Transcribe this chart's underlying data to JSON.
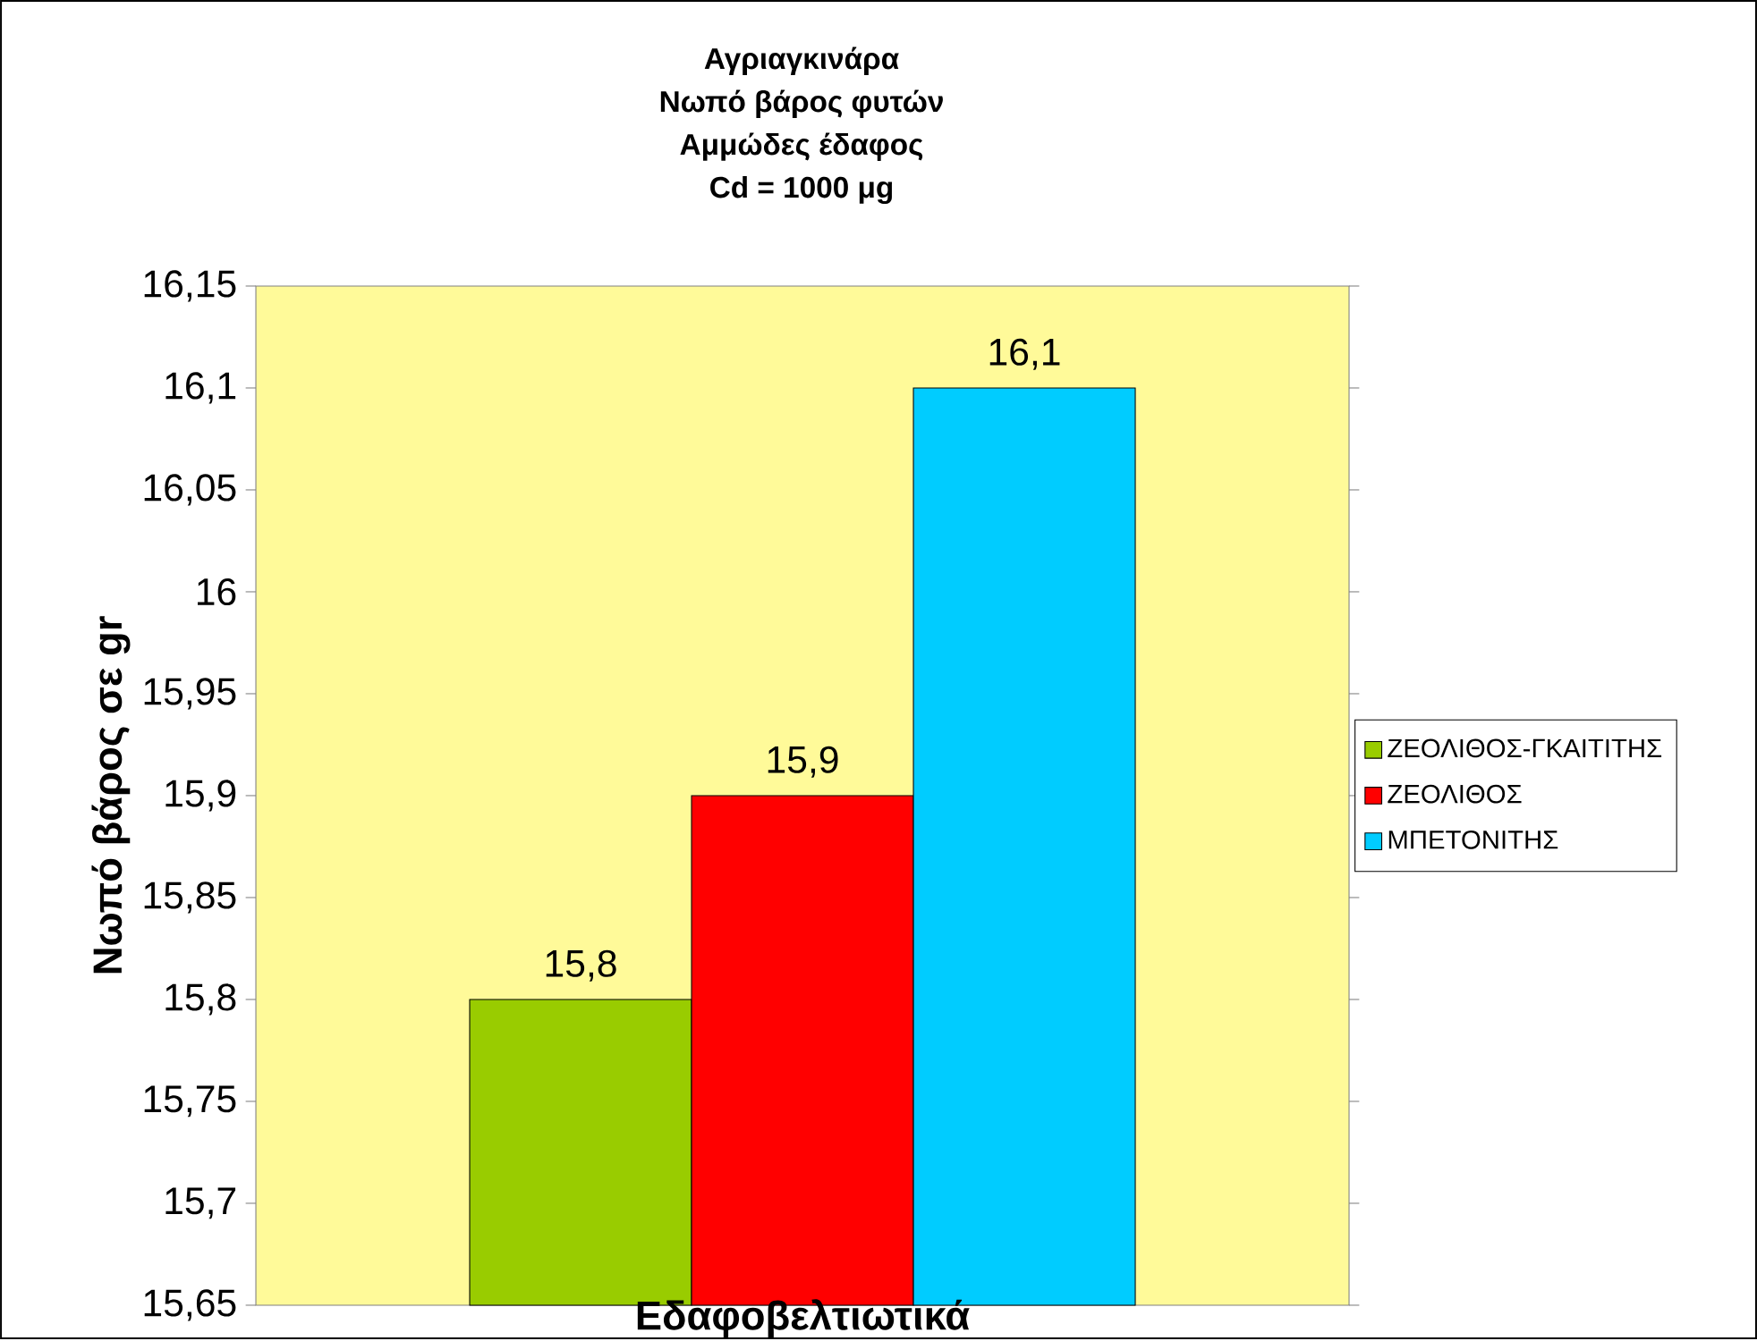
{
  "chart_data": {
    "type": "bar",
    "title": "Αγριαγκινάρα\nΝωπό βάρος φυτών\nΑμμώδες έδαφος\nCd = 1000 μg",
    "xlabel": "Εδαφοβελτιωτικά",
    "ylabel": "Νωπό βάρος σε gr",
    "categories": [
      null
    ],
    "series": [
      {
        "name": "ΖΕΟΛΙΘΟΣ-ΓΚΑΙΤΙΤΗΣ",
        "color": "#99cc00",
        "values": [
          15.8
        ],
        "value_labels": [
          "15,8"
        ]
      },
      {
        "name": "ΖΕΟΛΙΘΟΣ",
        "color": "#ff0000",
        "values": [
          15.9
        ],
        "value_labels": [
          "15,9"
        ]
      },
      {
        "name": "ΜΠΕΤΟΝΙΤΗΣ",
        "color": "#00ccff",
        "values": [
          16.1
        ],
        "value_labels": [
          "16,1"
        ]
      }
    ],
    "ylim": [
      15.65,
      16.15
    ],
    "yticks": [
      {
        "value": 15.65,
        "label": "15,65"
      },
      {
        "value": 15.7,
        "label": "15,7"
      },
      {
        "value": 15.75,
        "label": "15,75"
      },
      {
        "value": 15.8,
        "label": "15,8"
      },
      {
        "value": 15.85,
        "label": "15,85"
      },
      {
        "value": 15.9,
        "label": "15,9"
      },
      {
        "value": 15.95,
        "label": "15,95"
      },
      {
        "value": 16,
        "label": "16"
      },
      {
        "value": 16.05,
        "label": "16,05"
      },
      {
        "value": 16.1,
        "label": "16,1"
      },
      {
        "value": 16.15,
        "label": "16,15"
      }
    ],
    "legend": "right",
    "grid": false
  }
}
